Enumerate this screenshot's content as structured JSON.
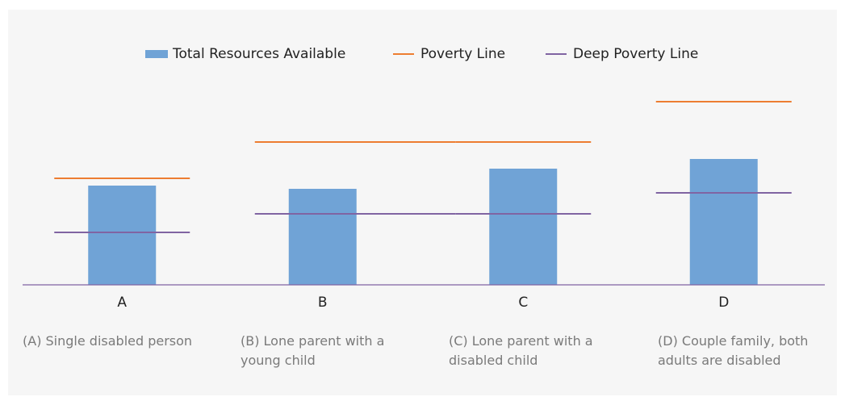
{
  "chart_data": {
    "type": "bar",
    "categories": [
      "A",
      "B",
      "C",
      "D"
    ],
    "series": [
      {
        "name": "Total Resources Available",
        "color": "#70a3d6",
        "values": [
          123,
          119,
          144,
          156
        ]
      },
      {
        "name": "Poverty Line",
        "color": "#ed7d31",
        "values": [
          132,
          177,
          177,
          227
        ]
      },
      {
        "name": "Deep Poverty Line",
        "color": "#8064a2",
        "values": [
          65,
          88,
          88,
          114
        ]
      }
    ],
    "ylim": [
      0,
      250
    ],
    "captions": [
      "(A) Single disabled person",
      "(B) Lone parent with a young child",
      "(C) Lone parent with a disabled child",
      "(D) Couple family, both adults are disabled"
    ]
  }
}
